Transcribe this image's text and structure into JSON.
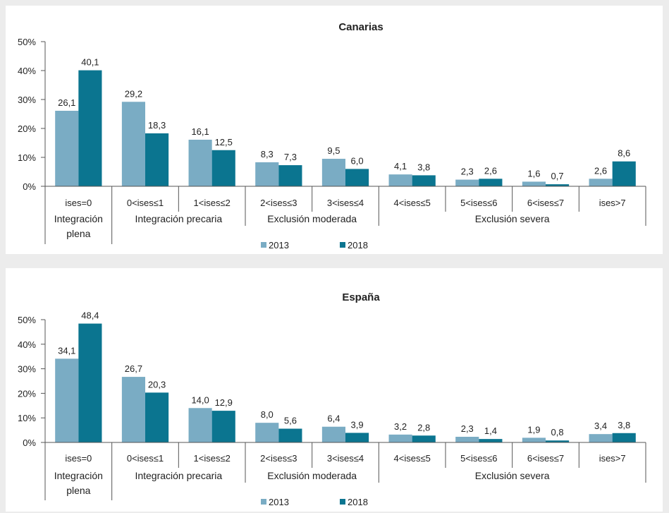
{
  "colors": {
    "background": "#ececec",
    "plot": "#ffffff",
    "series_2013": "#7aacc4",
    "series_2018": "#0b7590",
    "axis": "#555555"
  },
  "chart_data": [
    {
      "type": "bar",
      "title": "Canarias",
      "categories": [
        "ises=0",
        "0<ises≤1",
        "1<ises≤2",
        "2<ises≤3",
        "3<ises≤4",
        "4<ises≤5",
        "5<ises≤6",
        "6<ises≤7",
        "ises>7"
      ],
      "groups": [
        {
          "label": "Integración plena",
          "from": 0,
          "to": 0
        },
        {
          "label": "Integración precaria",
          "from": 1,
          "to": 2
        },
        {
          "label": "Exclusión moderada",
          "from": 3,
          "to": 4
        },
        {
          "label": "Exclusión severa",
          "from": 5,
          "to": 8
        }
      ],
      "series": [
        {
          "name": "2013",
          "values": [
            26.1,
            29.2,
            16.1,
            8.3,
            9.5,
            4.1,
            2.3,
            1.6,
            2.6
          ],
          "labels": [
            "26,1",
            "29,2",
            "16,1",
            "8,3",
            "9,5",
            "4,1",
            "2,3",
            "1,6",
            "2,6"
          ]
        },
        {
          "name": "2018",
          "values": [
            40.1,
            18.3,
            12.5,
            7.3,
            6.0,
            3.8,
            2.6,
            0.7,
            8.6
          ],
          "labels": [
            "40,1",
            "18,3",
            "12,5",
            "7,3",
            "6,0",
            "3,8",
            "2,6",
            "0,7",
            "8,6"
          ]
        }
      ],
      "yticks": [
        "0%",
        "10%",
        "20%",
        "30%",
        "40%",
        "50%"
      ],
      "ylim": [
        0,
        50
      ],
      "legend_position": "bottom"
    },
    {
      "type": "bar",
      "title": "España",
      "categories": [
        "ises=0",
        "0<ises≤1",
        "1<ises≤2",
        "2<ises≤3",
        "3<ises≤4",
        "4<ises≤5",
        "5<ises≤6",
        "6<ises≤7",
        "ises>7"
      ],
      "groups": [
        {
          "label": "Integración plena",
          "from": 0,
          "to": 0
        },
        {
          "label": "Integración precaria",
          "from": 1,
          "to": 2
        },
        {
          "label": "Exclusión moderada",
          "from": 3,
          "to": 4
        },
        {
          "label": "Exclusión severa",
          "from": 5,
          "to": 8
        }
      ],
      "series": [
        {
          "name": "2013",
          "values": [
            34.1,
            26.7,
            14.0,
            8.0,
            6.4,
            3.2,
            2.3,
            1.9,
            3.4
          ],
          "labels": [
            "34,1",
            "26,7",
            "14,0",
            "8,0",
            "6,4",
            "3,2",
            "2,3",
            "1,9",
            "3,4"
          ]
        },
        {
          "name": "2018",
          "values": [
            48.4,
            20.3,
            12.9,
            5.6,
            3.9,
            2.8,
            1.4,
            0.8,
            3.8
          ],
          "labels": [
            "48,4",
            "20,3",
            "12,9",
            "5,6",
            "3,9",
            "2,8",
            "1,4",
            "0,8",
            "3,8"
          ]
        }
      ],
      "yticks": [
        "0%",
        "10%",
        "20%",
        "30%",
        "40%",
        "50%"
      ],
      "ylim": [
        0,
        50
      ],
      "legend_position": "bottom"
    }
  ]
}
